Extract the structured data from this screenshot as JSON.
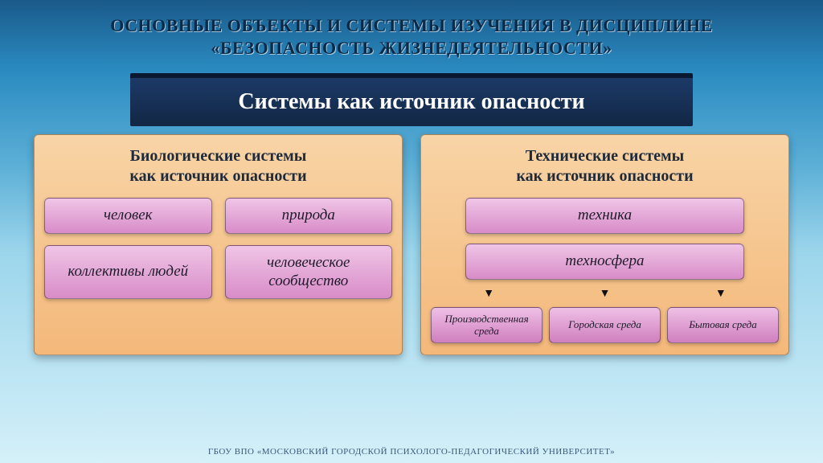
{
  "title_line1": "ОСНОВНЫЕ ОБЪЕКТЫ  И СИСТЕМЫ ИЗУЧЕНИЯ В ДИСЦИПЛИНЕ",
  "title_line2": "«БЕЗОПАСНОСТЬ ЖИЗНЕДЕЯТЕЛЬНОСТИ»",
  "main_header": "Системы как источник опасности",
  "left": {
    "header_l1": "Биологические системы",
    "header_l2": "как источник опасности",
    "items": [
      "человек",
      "природа",
      "коллективы людей",
      "человеческое сообщество"
    ]
  },
  "right": {
    "header_l1": "Технические системы",
    "header_l2": "как источник опасности",
    "top": "техника",
    "mid": "техносфера",
    "subs": [
      "Производственная среда",
      "Городская среда",
      "Бытовая среда"
    ]
  },
  "footer": "ГБОУ ВПО «МОСКОВСКИЙ ГОРОДСКОЙ ПСИХОЛОГО-ПЕДАГОГИЧЕСКИЙ УНИВЕРСИТЕТ»",
  "colors": {
    "panel_bg": "linear-gradient(180deg, #f8d4a6 0%, #f4b87a 100%)",
    "box_bg": "linear-gradient(180deg, #efc5e6 0%, #d88cc8 100%)",
    "small_box_bg": "linear-gradient(180deg, #eec0e5 0%, #d07fbf 100%)",
    "header_text": "#1f2a3a"
  }
}
